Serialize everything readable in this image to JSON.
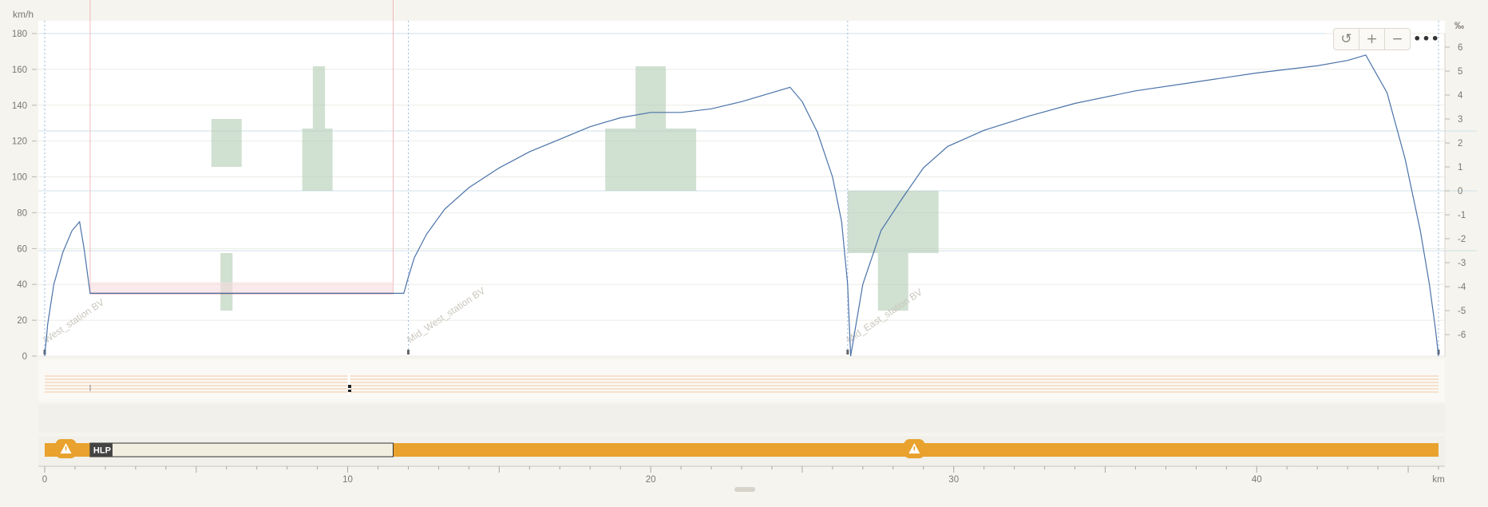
{
  "chart_data": {
    "type": "line",
    "x_unit": "km",
    "y_unit": "km/h",
    "y2_unit": "‰",
    "xlim": [
      0,
      46
    ],
    "ylim": [
      0,
      180
    ],
    "y2lim": [
      -7,
      7
    ],
    "x_ticks": [
      0,
      10,
      20,
      30,
      40
    ],
    "y_ticks": [
      0,
      20,
      40,
      60,
      80,
      100,
      120,
      140,
      160,
      180
    ],
    "y2_ticks": [
      6,
      5,
      4,
      3,
      2,
      1,
      0,
      -1,
      -2,
      -3,
      -4,
      -5,
      -6
    ],
    "series": [
      {
        "type": "line",
        "color": "#4a72a8",
        "x": [
          0,
          0.1,
          0.3,
          0.6,
          0.9,
          1.15,
          1.3,
          1.5,
          11.5,
          11.85,
          12.0,
          12.2,
          12.6,
          13.2,
          14.0,
          15.0,
          16.0,
          17.0,
          18.0,
          19.0,
          20.0,
          21.0,
          22.0,
          23.0,
          24.0,
          24.6,
          25.0,
          25.5,
          26.0,
          26.3,
          26.5,
          26.6,
          27.0,
          27.6,
          28.3,
          29.0,
          29.8,
          31.0,
          32.5,
          34.0,
          36.0,
          38.0,
          40.0,
          42.0,
          43.0,
          43.6,
          44.3,
          44.9,
          45.4,
          45.7,
          45.9,
          46.0
        ],
        "y": [
          0,
          18,
          40,
          58,
          70,
          75,
          60,
          35,
          35,
          35,
          44,
          55,
          68,
          82,
          94,
          105,
          114,
          121,
          128,
          133,
          136,
          136,
          138,
          142,
          147,
          150,
          142,
          125,
          100,
          75,
          40,
          0,
          40,
          70,
          88,
          105,
          117,
          126,
          134,
          141,
          148,
          153,
          158,
          162,
          165,
          168,
          147,
          110,
          70,
          40,
          15,
          0
        ]
      }
    ],
    "speed_limit": {
      "color": "#d9464c",
      "x": [
        1.5,
        11.5
      ],
      "y": [
        35,
        35
      ]
    },
    "gradient_blocks": [
      {
        "x0": 5.5,
        "x1": 6.5,
        "y0": 1,
        "y1": 3
      },
      {
        "x0": 5.8,
        "x1": 6.2,
        "y0": -5,
        "y1": -2.6
      },
      {
        "x0": 8.5,
        "x1": 9.5,
        "y0": 0,
        "y1": 2.6
      },
      {
        "x0": 8.85,
        "x1": 9.25,
        "y0": 2.6,
        "y1": 5.2
      },
      {
        "x0": 18.5,
        "x1": 21.5,
        "y0": 0,
        "y1": 2.6
      },
      {
        "x0": 19.5,
        "x1": 20.5,
        "y0": 2.6,
        "y1": 5.2
      },
      {
        "x0": 26.5,
        "x1": 29.5,
        "y0": -2.6,
        "y1": 0
      },
      {
        "x0": 27.5,
        "x1": 28.5,
        "y0": -5,
        "y1": -2.6
      }
    ],
    "stations": [
      {
        "name": "West_station BV",
        "km": 0
      },
      {
        "name": "Mid_West_station BV",
        "km": 12
      },
      {
        "name": "Mid_East_station BV",
        "km": 26.5
      },
      {
        "name": "",
        "km": 46
      }
    ],
    "hlp_zone": {
      "label": "HLP",
      "from": 1.5,
      "to": 11.5
    },
    "warnings": [
      {
        "km": 0.7
      },
      {
        "km": 28.7
      }
    ]
  },
  "toolbar": {
    "reset_glyph": "↺",
    "zoom_in_glyph": "+",
    "zoom_out_glyph": "−",
    "more_glyph": "•••"
  }
}
